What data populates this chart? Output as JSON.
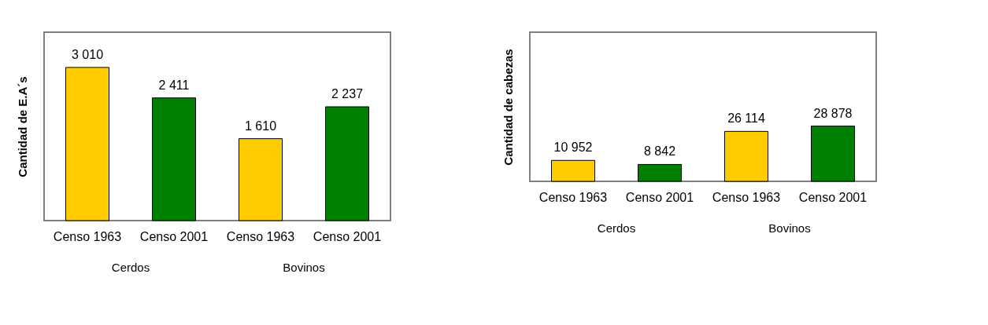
{
  "chart_data": [
    {
      "type": "bar",
      "ylabel": "Cantidad de E.A´s",
      "categories": [
        "Censo 1963",
        "Censo 2001",
        "Censo 1963",
        "Censo 2001"
      ],
      "values": [
        3010,
        2411,
        1610,
        2237
      ],
      "colors": [
        "#ffcc00",
        "#008000",
        "#ffcc00",
        "#008000"
      ],
      "data_labels": true,
      "value_labels": [
        "3 010",
        "2 411",
        "1 610",
        "2 237"
      ],
      "annotations": [
        "Cerdos",
        "Bovinos"
      ],
      "grid": false
    },
    {
      "type": "bar",
      "ylabel": "Cantidad de cabezas",
      "categories": [
        "Censo 1963",
        "Censo 2001",
        "Censo 1963",
        "Censo 2001"
      ],
      "values": [
        10952,
        8842,
        26114,
        28878
      ],
      "colors": [
        "#ffcc00",
        "#008000",
        "#ffcc00",
        "#008000"
      ],
      "data_labels": true,
      "value_labels": [
        "10 952",
        "8 842",
        "26 114",
        "28 878"
      ],
      "annotations": [
        "Cerdos",
        "Bovinos"
      ],
      "grid": false
    }
  ]
}
